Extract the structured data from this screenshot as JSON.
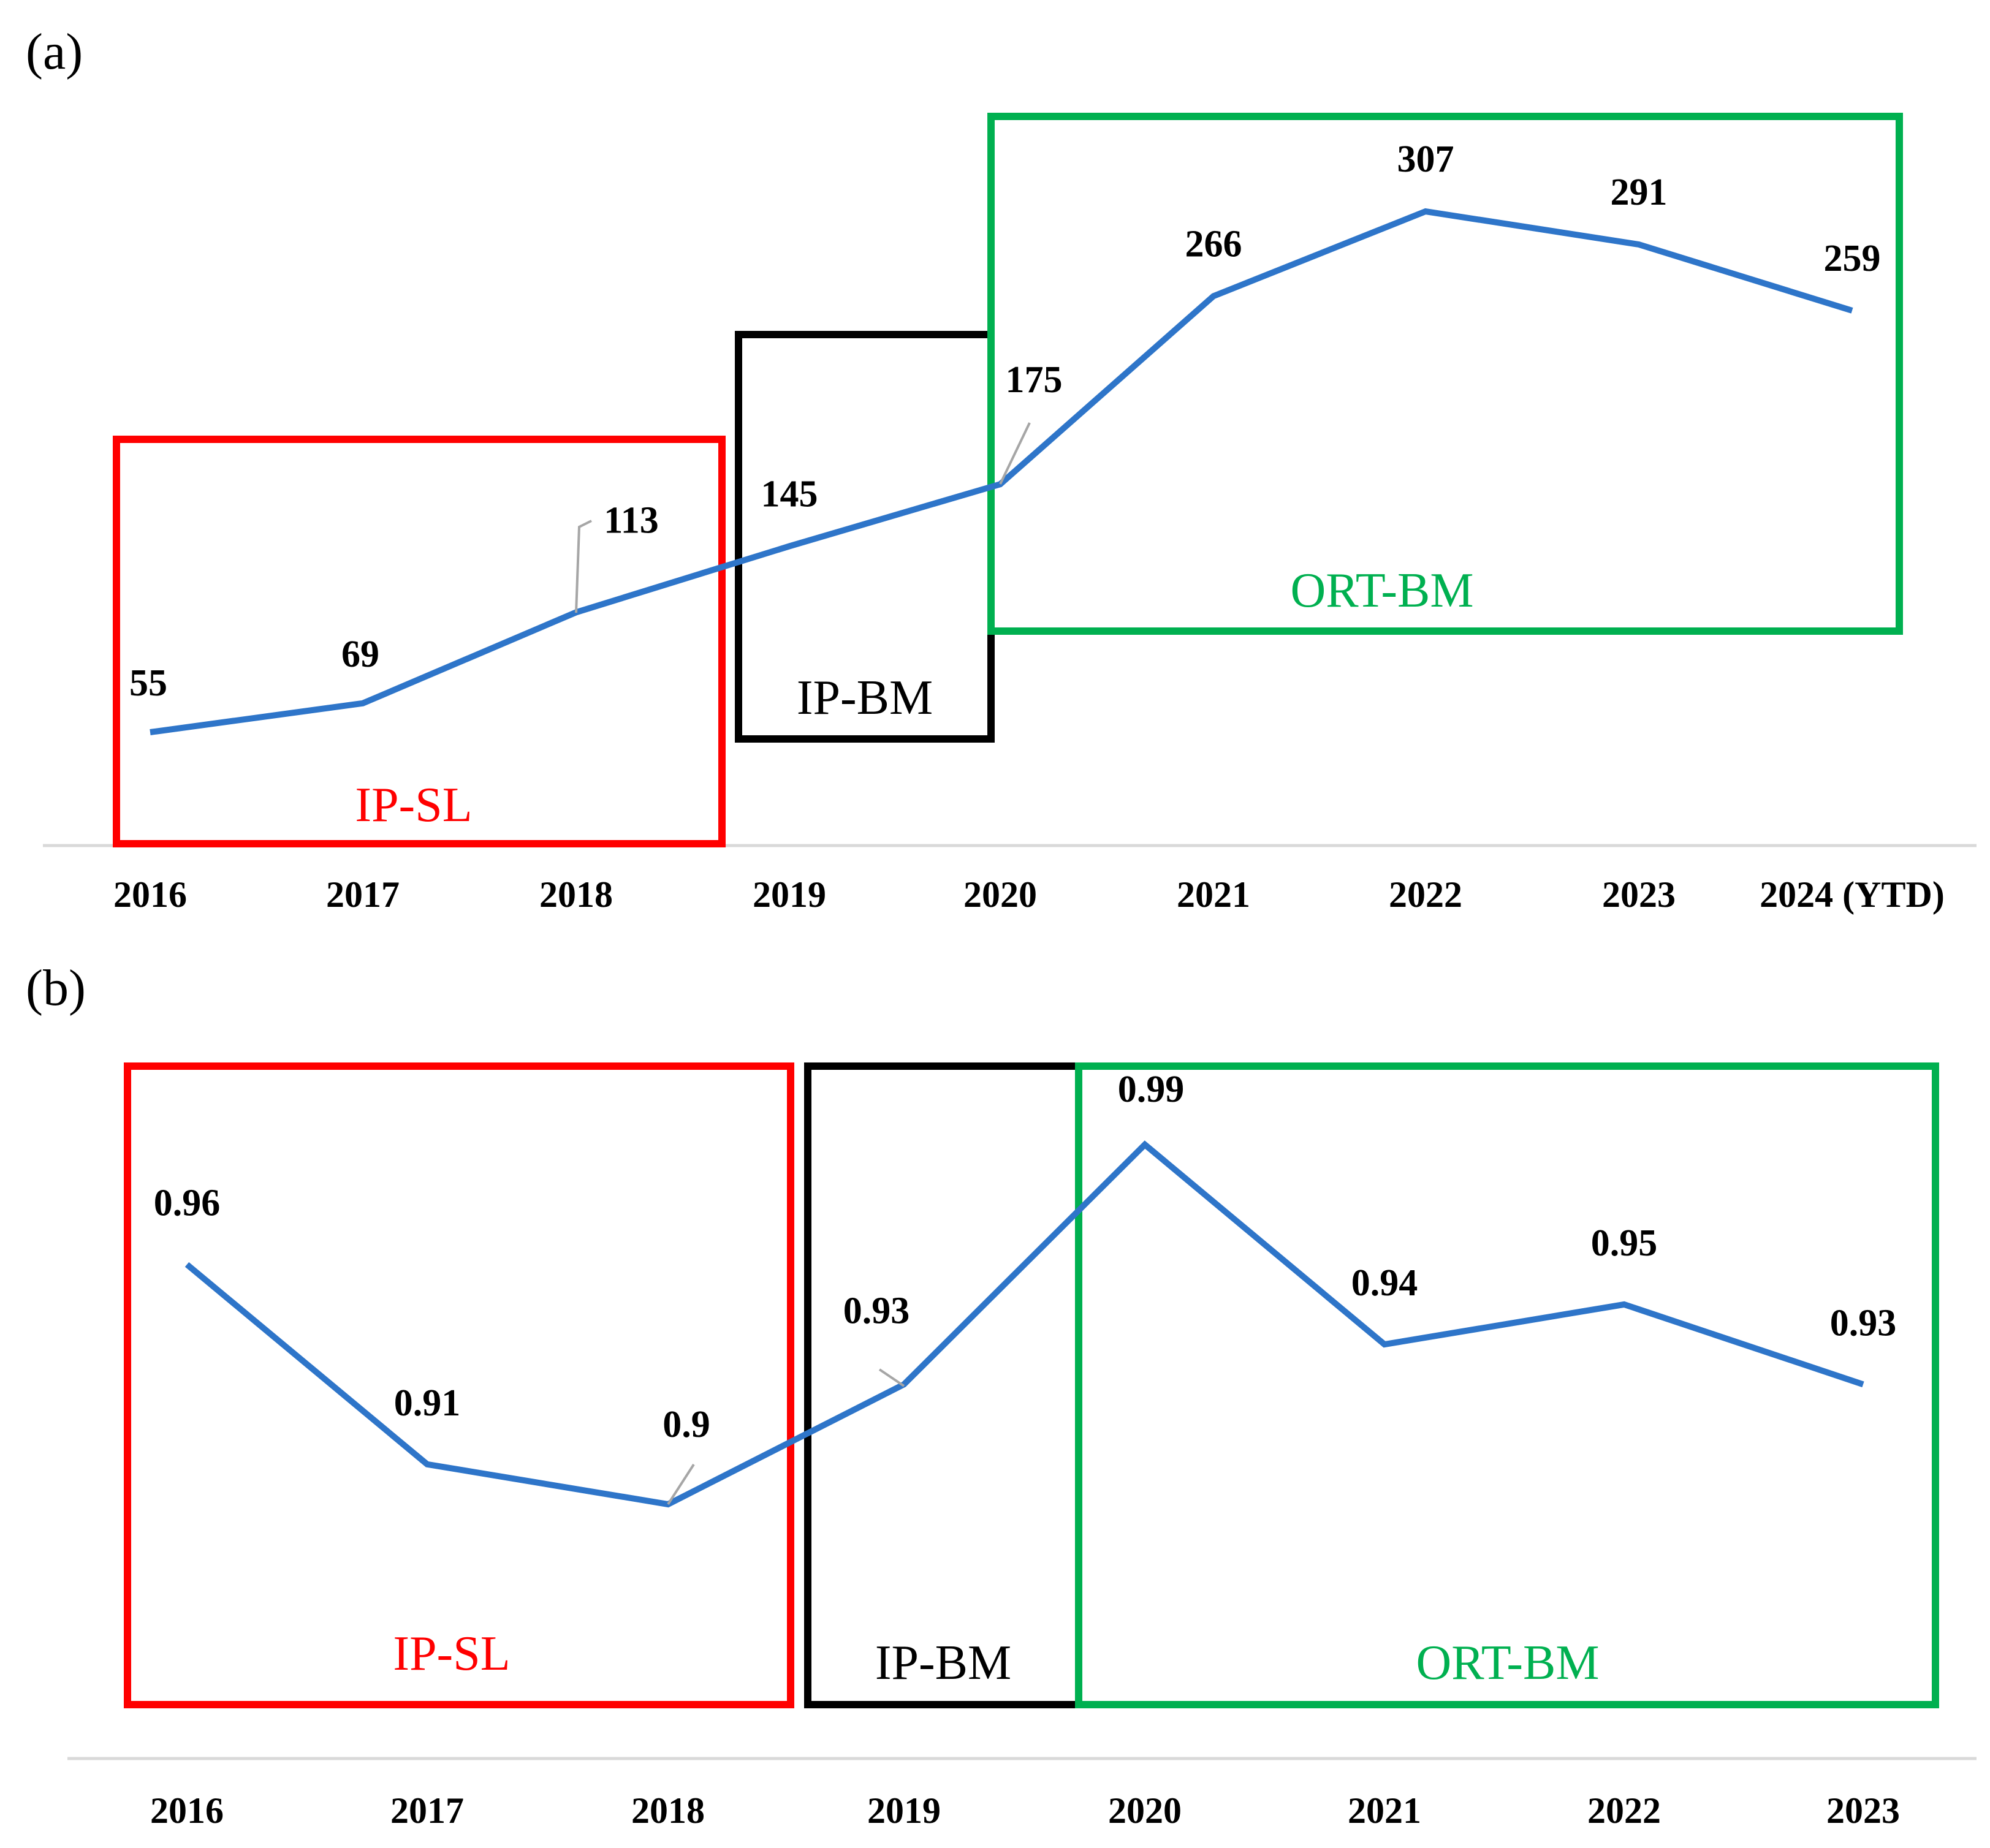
{
  "chart_data": [
    {
      "panel_label": "(a)",
      "type": "line",
      "categories": [
        "2016",
        "2017",
        "2018",
        "2019",
        "2020",
        "2021",
        "2022",
        "2023",
        "2024 (YTD)"
      ],
      "values": [
        55,
        69,
        113,
        145,
        175,
        266,
        307,
        291,
        259
      ],
      "data_labels": [
        "55",
        "69",
        "113",
        "145",
        "175",
        "266",
        "307",
        "291",
        "259"
      ],
      "series_color": "#2e75c9",
      "ylim": [
        0,
        360
      ],
      "grid": false,
      "regions": [
        {
          "label": "IP-SL",
          "color": "#ff0000"
        },
        {
          "label": "IP-BM",
          "color": "#000000"
        },
        {
          "label": "ORT-BM",
          "color": "#00b050"
        }
      ]
    },
    {
      "panel_label": "(b)",
      "type": "line",
      "categories": [
        "2016",
        "2017",
        "2018",
        "2019",
        "2020",
        "2021",
        "2022",
        "2023"
      ],
      "values": [
        0.96,
        0.91,
        0.9,
        0.93,
        0.99,
        0.94,
        0.95,
        0.93
      ],
      "data_labels": [
        "0.96",
        "0.91",
        "0.9",
        "0.93",
        "0.99",
        "0.94",
        "0.95",
        "0.93"
      ],
      "series_color": "#2e75c9",
      "ylim": [
        0.86,
        1.02
      ],
      "grid": false,
      "regions": [
        {
          "label": "IP-SL",
          "color": "#ff0000"
        },
        {
          "label": "IP-BM",
          "color": "#000000"
        },
        {
          "label": "ORT-BM",
          "color": "#00b050"
        }
      ]
    }
  ]
}
